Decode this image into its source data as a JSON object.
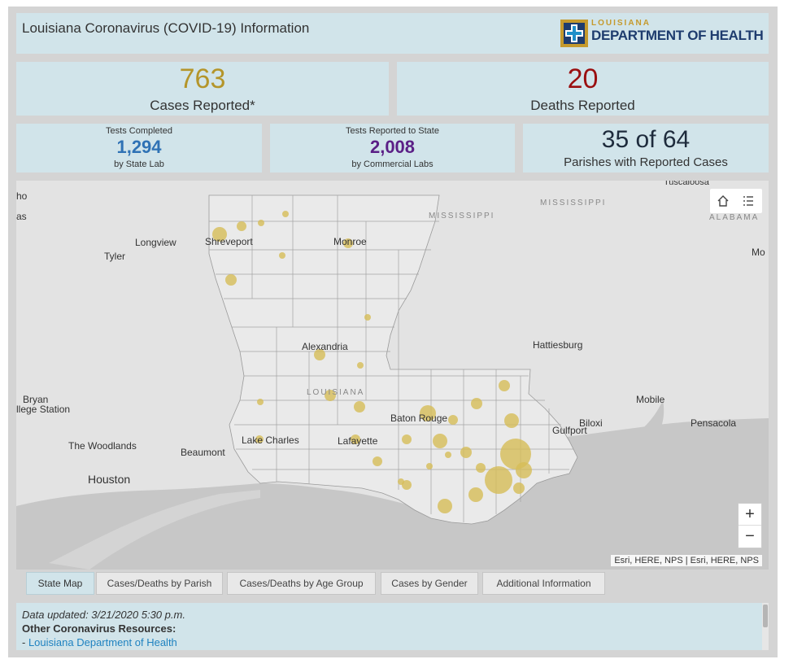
{
  "header": {
    "title": "Louisiana Coronavirus (COVID-19) Information",
    "logo_small": "LOUISIANA",
    "logo_big": "DEPARTMENT OF HEALTH"
  },
  "colors": {
    "cases": "#b4952a",
    "deaths": "#9a0f10",
    "tests_state": "#2f72b5",
    "tests_commercial": "#5b1f86",
    "parishes": "#1e2b3c",
    "bubble": "#d6bd57"
  },
  "kpis": {
    "cases": {
      "value": "763",
      "label": "Cases Reported*"
    },
    "deaths": {
      "value": "20",
      "label": "Deaths Reported"
    },
    "tests_state": {
      "top": "Tests Completed",
      "value": "1,294",
      "bottom": "by State Lab"
    },
    "tests_commercial": {
      "top": "Tests Reported to State",
      "value": "2,008",
      "bottom": "by Commercial Labs"
    },
    "parishes": {
      "value": "35 of 64",
      "label": "Parishes with Reported Cases"
    }
  },
  "map": {
    "places": [
      "Shreveport",
      "Monroe",
      "Longview",
      "Tyler",
      "Alexandria",
      "Hattiesburg",
      "Mobile",
      "Pensacola",
      "Bryan",
      "llege Station",
      "The Woodlands",
      "Beaumont",
      "Lake Charles",
      "Lafayette",
      "Baton Rouge",
      "Gulfport",
      "Biloxi",
      "Houston",
      "MISSISSIPPI",
      "MISSISSIPPI",
      "ALABAMA",
      "LOUISIANA",
      "Tuscaloosa",
      "Mo",
      "ho",
      "as"
    ],
    "tools": {
      "home_icon": "home-icon",
      "legend_icon": "list-icon"
    },
    "zoom_in": "+",
    "zoom_out": "−",
    "attribution": "Esri, HERE, NPS | Esri, HERE, NPS"
  },
  "tabs": [
    "State Map",
    "Cases/Deaths by Parish",
    "Cases/Deaths by Age Group",
    "Cases by Gender",
    "Additional Information"
  ],
  "info": {
    "updated": "Data updated: 3/21/2020 5:30 p.m.",
    "resources_heading": "Other Coronavirus Resources:",
    "bullet": "- ",
    "link": "Louisiana Department of Health"
  }
}
